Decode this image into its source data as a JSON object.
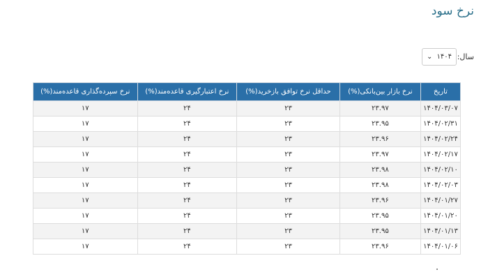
{
  "title": "نرخ سود",
  "year_filter": {
    "label": "سال:",
    "value": "۱۴۰۴"
  },
  "table": {
    "headers": [
      "تاریخ",
      "نرخ بازار بین‌بانکی(%)",
      "حداقل نرخ توافق بازخرید(%)",
      "نرخ اعتبارگیری قاعده‌مند(%)",
      "نرخ سپرده‌گذاری قاعده‌مند(%)"
    ],
    "rows": [
      [
        "۱۴۰۴/۰۳/۰۷",
        "۲۳.۹۷",
        "۲۳",
        "۲۴",
        "۱۷"
      ],
      [
        "۱۴۰۴/۰۲/۳۱",
        "۲۳.۹۵",
        "۲۳",
        "۲۴",
        "۱۷"
      ],
      [
        "۱۴۰۴/۰۲/۲۴",
        "۲۳.۹۶",
        "۲۳",
        "۲۴",
        "۱۷"
      ],
      [
        "۱۴۰۴/۰۲/۱۷",
        "۲۳.۹۷",
        "۲۳",
        "۲۴",
        "۱۷"
      ],
      [
        "۱۴۰۴/۰۲/۱۰",
        "۲۳.۹۸",
        "۲۳",
        "۲۴",
        "۱۷"
      ],
      [
        "۱۴۰۴/۰۲/۰۳",
        "۲۳.۹۸",
        "۲۳",
        "۲۴",
        "۱۷"
      ],
      [
        "۱۴۰۴/۰۱/۲۷",
        "۲۳.۹۶",
        "۲۳",
        "۲۴",
        "۱۷"
      ],
      [
        "۱۴۰۴/۰۱/۲۰",
        "۲۳.۹۵",
        "۲۳",
        "۲۴",
        "۱۷"
      ],
      [
        "۱۴۰۴/۰۱/۱۳",
        "۲۳.۹۵",
        "۲۳",
        "۲۴",
        "۱۷"
      ],
      [
        "۱۴۰۴/۰۱/۰۶",
        "۲۳.۹۶",
        "۲۳",
        "۲۴",
        "۱۷"
      ]
    ]
  },
  "colors": {
    "header_bg": "#2a6fa8",
    "title": "#2a6f8a"
  }
}
